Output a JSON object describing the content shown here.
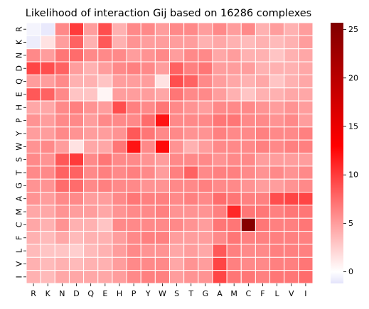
{
  "chart_data": {
    "type": "heatmap",
    "title": "Likelihood of interaction Gij based on 16286 complexes",
    "xlabel": "",
    "ylabel": "",
    "x_labels": [
      "R",
      "K",
      "N",
      "D",
      "Q",
      "E",
      "H",
      "P",
      "Y",
      "W",
      "S",
      "T",
      "G",
      "A",
      "M",
      "C",
      "F",
      "L",
      "V",
      "I"
    ],
    "y_labels": [
      "R",
      "K",
      "N",
      "D",
      "Q",
      "E",
      "H",
      "P",
      "Y",
      "W",
      "S",
      "T",
      "G",
      "A",
      "M",
      "C",
      "F",
      "L",
      "V",
      "I"
    ],
    "values": [
      [
        -0.5,
        -1.0,
        6.0,
        10.0,
        5.0,
        9.0,
        4.0,
        6.0,
        6.0,
        5.0,
        6.0,
        6.0,
        5.0,
        6.0,
        5.0,
        6.0,
        4.0,
        5.0,
        4.0,
        5.0
      ],
      [
        -0.8,
        1.5,
        5.0,
        8.0,
        4.0,
        8.5,
        4.0,
        5.5,
        5.0,
        5.0,
        5.0,
        5.0,
        4.0,
        4.5,
        4.0,
        3.5,
        4.0,
        3.5,
        4.0,
        5.0
      ],
      [
        6.0,
        5.0,
        7.0,
        7.5,
        6.0,
        6.0,
        6.0,
        5.0,
        5.5,
        6.0,
        5.0,
        6.0,
        6.0,
        4.5,
        5.0,
        4.0,
        4.0,
        3.0,
        4.0,
        4.5
      ],
      [
        9.5,
        9.0,
        8.0,
        5.0,
        4.0,
        5.0,
        6.0,
        6.5,
        6.0,
        5.0,
        8.0,
        6.5,
        7.0,
        5.0,
        5.0,
        5.0,
        4.0,
        4.0,
        4.0,
        4.5
      ],
      [
        5.0,
        5.0,
        6.0,
        4.0,
        4.0,
        3.0,
        5.0,
        5.0,
        5.0,
        1.5,
        9.0,
        8.0,
        6.0,
        5.0,
        4.5,
        4.0,
        4.5,
        3.0,
        4.0,
        4.5
      ],
      [
        8.5,
        8.0,
        6.0,
        3.0,
        3.0,
        0.5,
        5.0,
        5.0,
        5.0,
        4.5,
        7.0,
        6.0,
        6.0,
        5.0,
        4.0,
        3.0,
        4.0,
        4.0,
        4.5,
        4.5
      ],
      [
        4.5,
        4.5,
        6.0,
        6.5,
        5.5,
        5.0,
        9.0,
        6.5,
        6.0,
        7.0,
        6.0,
        5.5,
        5.0,
        6.0,
        6.0,
        6.0,
        5.5,
        5.0,
        5.5,
        5.0
      ],
      [
        5.5,
        5.0,
        6.0,
        6.0,
        5.0,
        6.0,
        6.0,
        6.0,
        7.5,
        12.0,
        6.0,
        6.0,
        6.0,
        7.0,
        7.0,
        6.0,
        6.0,
        5.5,
        6.0,
        5.0
      ],
      [
        5.0,
        5.0,
        6.0,
        5.5,
        5.0,
        5.0,
        5.5,
        8.5,
        7.0,
        6.0,
        6.0,
        5.5,
        5.5,
        6.5,
        6.0,
        6.0,
        6.5,
        6.0,
        6.0,
        6.5
      ],
      [
        5.5,
        6.0,
        5.0,
        1.5,
        4.5,
        4.5,
        7.0,
        12.0,
        6.0,
        12.5,
        5.5,
        4.0,
        5.0,
        6.0,
        6.0,
        6.0,
        6.5,
        6.0,
        6.5,
        6.5
      ],
      [
        6.0,
        5.5,
        8.5,
        10.0,
        6.0,
        7.0,
        6.0,
        6.0,
        5.5,
        5.0,
        6.0,
        6.0,
        6.0,
        5.5,
        6.0,
        6.0,
        5.0,
        5.0,
        5.0,
        5.0
      ],
      [
        6.0,
        6.0,
        8.0,
        8.0,
        6.0,
        6.5,
        6.0,
        6.5,
        6.0,
        5.0,
        6.5,
        8.0,
        6.0,
        6.5,
        6.5,
        6.0,
        5.5,
        6.0,
        5.5,
        6.0
      ],
      [
        5.5,
        5.5,
        7.5,
        7.5,
        6.0,
        6.5,
        6.0,
        6.0,
        5.5,
        5.5,
        6.0,
        6.0,
        6.5,
        6.0,
        6.0,
        5.5,
        5.0,
        5.0,
        5.5,
        6.0
      ],
      [
        5.5,
        5.0,
        6.0,
        6.0,
        5.0,
        5.0,
        6.0,
        7.0,
        6.5,
        6.5,
        6.0,
        6.5,
        6.0,
        7.5,
        7.0,
        6.5,
        6.5,
        9.0,
        9.5,
        9.5
      ],
      [
        4.5,
        4.5,
        5.5,
        5.0,
        5.0,
        4.5,
        5.5,
        6.0,
        6.0,
        6.5,
        5.5,
        5.5,
        5.5,
        6.5,
        11.0,
        7.0,
        7.0,
        6.5,
        7.0,
        7.0
      ],
      [
        4.5,
        4.0,
        5.5,
        4.0,
        4.0,
        3.0,
        6.0,
        6.0,
        6.0,
        6.0,
        6.0,
        5.5,
        5.0,
        7.0,
        7.0,
        25.0,
        7.0,
        6.5,
        6.5,
        7.0
      ],
      [
        4.0,
        3.5,
        4.5,
        3.5,
        4.0,
        4.0,
        5.0,
        6.0,
        6.5,
        6.5,
        5.0,
        5.0,
        5.0,
        6.0,
        7.0,
        6.5,
        6.5,
        6.5,
        6.5,
        6.5
      ],
      [
        3.5,
        3.0,
        3.0,
        2.5,
        3.5,
        4.0,
        5.0,
        6.0,
        5.5,
        5.5,
        4.5,
        5.0,
        4.5,
        8.5,
        6.5,
        6.0,
        6.0,
        6.5,
        6.5,
        6.5
      ],
      [
        4.0,
        3.5,
        4.0,
        3.5,
        4.0,
        4.0,
        5.0,
        6.0,
        6.0,
        6.0,
        4.5,
        5.5,
        5.0,
        9.5,
        6.5,
        6.0,
        6.0,
        6.5,
        6.5,
        7.0
      ],
      [
        4.0,
        3.5,
        4.5,
        4.5,
        4.5,
        4.5,
        5.0,
        6.0,
        6.5,
        6.5,
        5.0,
        5.5,
        5.5,
        9.5,
        7.0,
        7.0,
        6.5,
        7.0,
        7.0,
        7.5
      ]
    ],
    "vmin": -1.2,
    "vmax": 25.7,
    "colorbar_ticks": [
      0,
      5,
      10,
      15,
      20,
      25
    ],
    "color_stops": [
      {
        "value": -1.2,
        "color": "#e4e4fb"
      },
      {
        "value": 0,
        "color": "#ffffff"
      },
      {
        "value": 13,
        "color": "#ff0000"
      },
      {
        "value": 25.7,
        "color": "#800000"
      }
    ],
    "grid": true,
    "grid_color": "#ffffff",
    "legend": "colorbar-right"
  }
}
